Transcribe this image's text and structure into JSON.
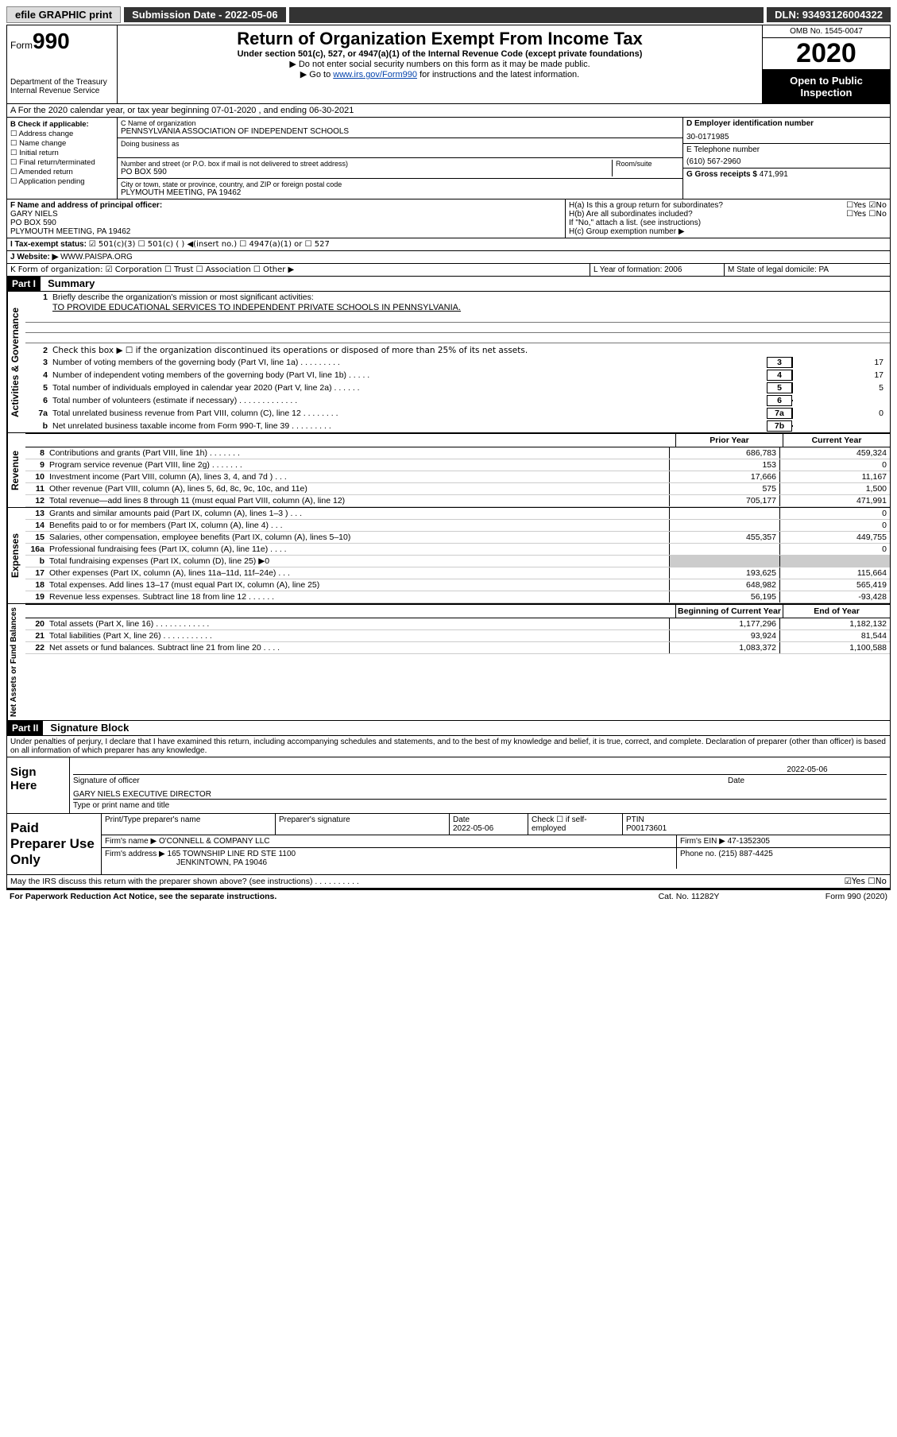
{
  "topbar": {
    "efile": "efile GRAPHIC print",
    "submission": "Submission Date - 2022-05-06",
    "dln": "DLN: 93493126004322"
  },
  "header": {
    "form_word": "Form",
    "form_num": "990",
    "title": "Return of Organization Exempt From Income Tax",
    "sub1": "Under section 501(c), 527, or 4947(a)(1) of the Internal Revenue Code (except private foundations)",
    "sub2": "▶ Do not enter social security numbers on this form as it may be made public.",
    "sub3_pre": "▶ Go to ",
    "sub3_link": "www.irs.gov/Form990",
    "sub3_post": " for instructions and the latest information.",
    "dept": "Department of the Treasury",
    "irs": "Internal Revenue Service",
    "omb": "OMB No. 1545-0047",
    "year": "2020",
    "open": "Open to Public Inspection"
  },
  "row_a": "A For the 2020 calendar year, or tax year beginning 07-01-2020    , and ending 06-30-2021",
  "box_b": {
    "label": "B Check if applicable:",
    "items": [
      "☐ Address change",
      "☐ Name change",
      "☐ Initial return",
      "☐ Final return/terminated",
      "☐ Amended return",
      "☐ Application pending"
    ]
  },
  "box_c": {
    "label": "C Name of organization",
    "name": "PENNSYLVANIA ASSOCIATION OF INDEPENDENT SCHOOLS",
    "dba_label": "Doing business as",
    "street_label": "Number and street (or P.O. box if mail is not delivered to street address)",
    "room_label": "Room/suite",
    "street": "PO BOX 590",
    "city_label": "City or town, state or province, country, and ZIP or foreign postal code",
    "city": "PLYMOUTH MEETING, PA  19462"
  },
  "box_d": {
    "label": "D Employer identification number",
    "val": "30-0171985"
  },
  "box_e": {
    "label": "E Telephone number",
    "val": "(610) 567-2960"
  },
  "box_g": {
    "label": "G Gross receipts $",
    "val": "471,991"
  },
  "box_f": {
    "label": "F Name and address of principal officer:",
    "name": "GARY NIELS",
    "street": "PO BOX 590",
    "city": "PLYMOUTH MEETING, PA  19462"
  },
  "box_h": {
    "ha": "H(a)  Is this a group return for subordinates?",
    "ha_val": "☐Yes  ☑No",
    "hb": "H(b)  Are all subordinates included?",
    "hb_val": "☐Yes  ☐No",
    "hb_note": "If \"No,\" attach a list. (see instructions)",
    "hc": "H(c)  Group exemption number ▶"
  },
  "row_i": {
    "label": "I  Tax-exempt status:",
    "opts": "☑ 501(c)(3)    ☐ 501(c) (  ) ◀(insert no.)    ☐ 4947(a)(1) or   ☐ 527"
  },
  "row_j": {
    "label": "J   Website: ▶",
    "val": "WWW.PAISPA.ORG"
  },
  "row_k": "K Form of organization:  ☑ Corporation  ☐ Trust  ☐ Association  ☐ Other ▶",
  "row_l": "L Year of formation: 2006",
  "row_m": "M State of legal domicile: PA",
  "part1": {
    "tag": "Part I",
    "title": "Summary",
    "side_gov": "Activities & Governance",
    "side_rev": "Revenue",
    "side_exp": "Expenses",
    "side_net": "Net Assets or Fund Balances",
    "q1": "Briefly describe the organization's mission or most significant activities:",
    "q1_val": "TO PROVIDE EDUCATIONAL SERVICES TO INDEPENDENT PRIVATE SCHOOLS IN PENNSYLVANIA.",
    "q2": "Check this box ▶ ☐  if the organization discontinued its operations or disposed of more than 25% of its net assets.",
    "lines_gov": [
      {
        "n": "3",
        "t": "Number of voting members of the governing body (Part VI, line 1a)   .    .    .    .    .    .    .    .    .",
        "box": "3",
        "v": "17"
      },
      {
        "n": "4",
        "t": "Number of independent voting members of the governing body (Part VI, line 1b)   .    .    .    .    .",
        "box": "4",
        "v": "17"
      },
      {
        "n": "5",
        "t": "Total number of individuals employed in calendar year 2020 (Part V, line 2a)   .    .    .    .    .    .",
        "box": "5",
        "v": "5"
      },
      {
        "n": "6",
        "t": "Total number of volunteers (estimate if necessary)   .    .    .    .    .    .    .    .    .    .    .    .    .",
        "box": "6",
        "v": ""
      },
      {
        "n": "7a",
        "t": "Total unrelated business revenue from Part VIII, column (C), line 12   .    .    .    .    .    .    .    .",
        "box": "7a",
        "v": "0"
      },
      {
        "n": "b",
        "t": "Net unrelated business taxable income from Form 990-T, line 39   .    .    .    .    .    .    .    .    .",
        "box": "7b",
        "v": ""
      }
    ],
    "col_prior": "Prior Year",
    "col_curr": "Current Year",
    "lines_rev": [
      {
        "n": "8",
        "t": "Contributions and grants (Part VIII, line 1h)   .    .    .    .    .    .    .",
        "p": "686,783",
        "c": "459,324"
      },
      {
        "n": "9",
        "t": "Program service revenue (Part VIII, line 2g)   .    .    .    .    .    .    .",
        "p": "153",
        "c": "0"
      },
      {
        "n": "10",
        "t": "Investment income (Part VIII, column (A), lines 3, 4, and 7d )   .    .    .",
        "p": "17,666",
        "c": "11,167"
      },
      {
        "n": "11",
        "t": "Other revenue (Part VIII, column (A), lines 5, 6d, 8c, 9c, 10c, and 11e)",
        "p": "575",
        "c": "1,500"
      },
      {
        "n": "12",
        "t": "Total revenue—add lines 8 through 11 (must equal Part VIII, column (A), line 12)",
        "p": "705,177",
        "c": "471,991"
      }
    ],
    "lines_exp": [
      {
        "n": "13",
        "t": "Grants and similar amounts paid (Part IX, column (A), lines 1–3 )   .    .    .",
        "p": "",
        "c": "0"
      },
      {
        "n": "14",
        "t": "Benefits paid to or for members (Part IX, column (A), line 4)   .    .    .",
        "p": "",
        "c": "0"
      },
      {
        "n": "15",
        "t": "Salaries, other compensation, employee benefits (Part IX, column (A), lines 5–10)",
        "p": "455,357",
        "c": "449,755"
      },
      {
        "n": "16a",
        "t": "Professional fundraising fees (Part IX, column (A), line 11e)   .    .    .    .",
        "p": "",
        "c": "0"
      },
      {
        "n": "b",
        "t": "Total fundraising expenses (Part IX, column (D), line 25) ▶0",
        "p": "—",
        "c": "—"
      },
      {
        "n": "17",
        "t": "Other expenses (Part IX, column (A), lines 11a–11d, 11f–24e)   .    .    .",
        "p": "193,625",
        "c": "115,664"
      },
      {
        "n": "18",
        "t": "Total expenses. Add lines 13–17 (must equal Part IX, column (A), line 25)",
        "p": "648,982",
        "c": "565,419"
      },
      {
        "n": "19",
        "t": "Revenue less expenses. Subtract line 18 from line 12   .    .    .    .    .    .",
        "p": "56,195",
        "c": "-93,428"
      }
    ],
    "col_beg": "Beginning of Current Year",
    "col_end": "End of Year",
    "lines_net": [
      {
        "n": "20",
        "t": "Total assets (Part X, line 16)   .    .    .    .    .    .    .    .    .    .    .    .",
        "p": "1,177,296",
        "c": "1,182,132"
      },
      {
        "n": "21",
        "t": "Total liabilities (Part X, line 26)   .    .    .    .    .    .    .    .    .    .    .",
        "p": "93,924",
        "c": "81,544"
      },
      {
        "n": "22",
        "t": "Net assets or fund balances. Subtract line 21 from line 20   .    .    .    .",
        "p": "1,083,372",
        "c": "1,100,588"
      }
    ]
  },
  "part2": {
    "tag": "Part II",
    "title": "Signature Block",
    "penalty": "Under penalties of perjury, I declare that I have examined this return, including accompanying schedules and statements, and to the best of my knowledge and belief, it is true, correct, and complete. Declaration of preparer (other than officer) is based on all information of which preparer has any knowledge.",
    "sign_here": "Sign Here",
    "sig_officer": "Signature of officer",
    "sig_date": "2022-05-06",
    "date_label": "Date",
    "sig_name": "GARY NIELS EXECUTIVE DIRECTOR",
    "sig_name_label": "Type or print name and title",
    "paid": "Paid Preparer Use Only",
    "p_name_label": "Print/Type preparer's name",
    "p_sig_label": "Preparer's signature",
    "p_date_label": "Date",
    "p_date": "2022-05-06",
    "p_check": "Check ☐ if self-employed",
    "p_ptin_label": "PTIN",
    "p_ptin": "P00173601",
    "firm_name_label": "Firm's name     ▶",
    "firm_name": "O'CONNELL & COMPANY LLC",
    "firm_ein_label": "Firm's EIN ▶",
    "firm_ein": "47-1352305",
    "firm_addr_label": "Firm's address ▶",
    "firm_addr1": "165 TOWNSHIP LINE RD STE 1100",
    "firm_addr2": "JENKINTOWN, PA  19046",
    "firm_phone_label": "Phone no.",
    "firm_phone": "(215) 887-4425",
    "discuss": "May the IRS discuss this return with the preparer shown above? (see instructions)    .    .    .    .    .    .    .    .    .    .",
    "discuss_val": "☑Yes  ☐No"
  },
  "footer": {
    "pra": "For Paperwork Reduction Act Notice, see the separate instructions.",
    "cat": "Cat. No. 11282Y",
    "form": "Form 990 (2020)"
  }
}
